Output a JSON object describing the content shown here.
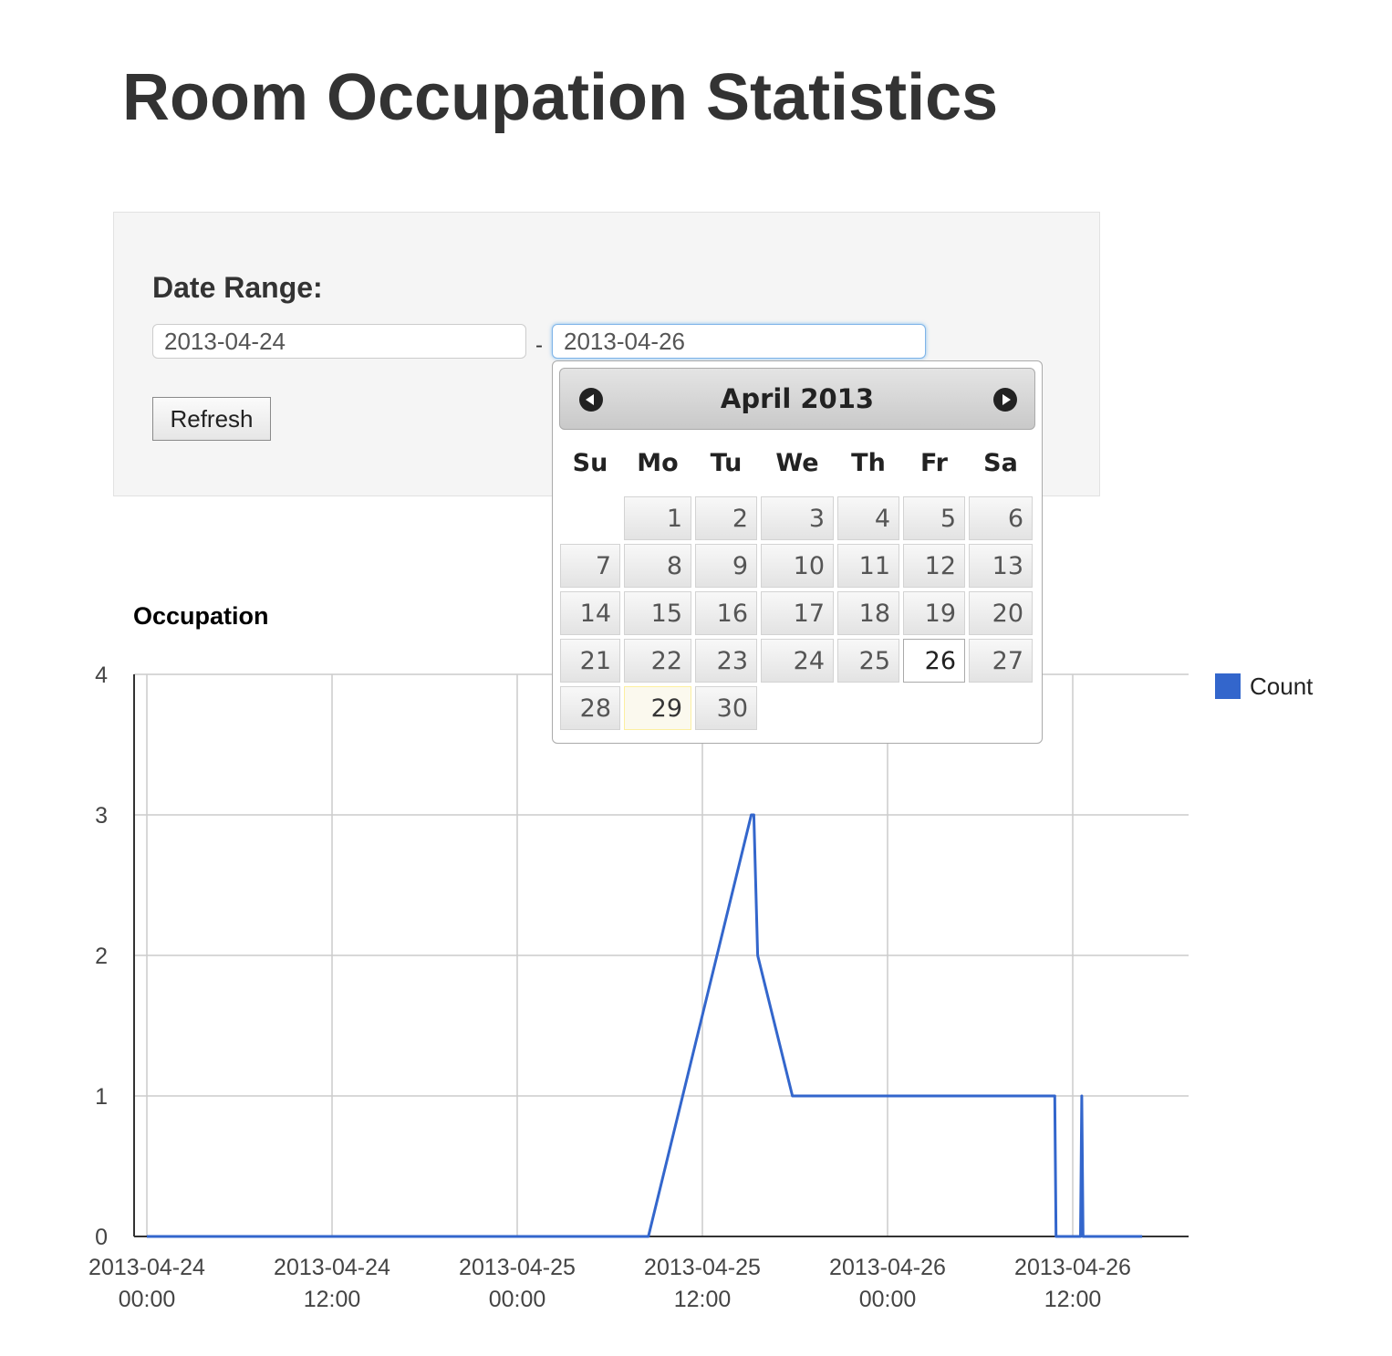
{
  "page": {
    "title": "Room Occupation Statistics"
  },
  "form": {
    "range_label": "Date Range:",
    "start_date": "2013-04-24",
    "separator": "-",
    "end_date": "2013-04-26",
    "refresh_label": "Refresh"
  },
  "datepicker": {
    "title": "April 2013",
    "weekdays": [
      "Su",
      "Mo",
      "Tu",
      "We",
      "Th",
      "Fr",
      "Sa"
    ],
    "first_weekday_index": 1,
    "days_in_month": 30,
    "today": 29,
    "selected": 26,
    "prev_icon": "circle-arrow-left-icon",
    "next_icon": "circle-arrow-right-icon"
  },
  "chart_data": {
    "type": "line",
    "title": "Occupation",
    "xlabel": "",
    "ylabel": "",
    "x_axis": "datetime (hours)",
    "xlim": [
      "2013-04-24 00:00",
      "2013-04-26 16:30"
    ],
    "x_ticks": [
      {
        "value": "2013-04-24 00:00",
        "line1": "2013-04-24",
        "line2": "00:00"
      },
      {
        "value": "2013-04-24 12:00",
        "line1": "2013-04-24",
        "line2": "12:00"
      },
      {
        "value": "2013-04-25 00:00",
        "line1": "2013-04-25",
        "line2": "00:00"
      },
      {
        "value": "2013-04-25 12:00",
        "line1": "2013-04-25",
        "line2": "12:00"
      },
      {
        "value": "2013-04-26 00:00",
        "line1": "2013-04-26",
        "line2": "00:00"
      },
      {
        "value": "2013-04-26 12:00",
        "line1": "2013-04-26",
        "line2": "12:00"
      }
    ],
    "ylim": [
      0,
      4
    ],
    "y_ticks": [
      0,
      1,
      2,
      3,
      4
    ],
    "grid": true,
    "legend": "right",
    "series": [
      {
        "name": "Count",
        "color": "#3366cc",
        "points": [
          {
            "x": "2013-04-24 00:00",
            "y": 0
          },
          {
            "x": "2013-04-25 08:30",
            "y": 0
          },
          {
            "x": "2013-04-25 15:10",
            "y": 3
          },
          {
            "x": "2013-04-25 15:20",
            "y": 3
          },
          {
            "x": "2013-04-25 15:35",
            "y": 2
          },
          {
            "x": "2013-04-25 17:50",
            "y": 1
          },
          {
            "x": "2013-04-26 10:50",
            "y": 1
          },
          {
            "x": "2013-04-26 10:55",
            "y": 0
          },
          {
            "x": "2013-04-26 12:30",
            "y": 0
          },
          {
            "x": "2013-04-26 12:35",
            "y": 1
          },
          {
            "x": "2013-04-26 12:40",
            "y": 0
          },
          {
            "x": "2013-04-26 16:30",
            "y": 0
          }
        ]
      }
    ]
  }
}
